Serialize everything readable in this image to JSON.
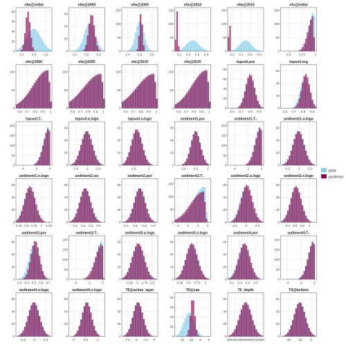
{
  "colors": {
    "prior": "#87ceeb",
    "posterior": "#8b0a50",
    "grid": "#e6e6e6",
    "frame": "#555555"
  },
  "legend": {
    "placement": "right",
    "entries": [
      "prior",
      "posterior"
    ]
  },
  "chart_data": {
    "type": "histogram-grid",
    "grid": true,
    "panels": [
      {
        "title": "nfw@initial",
        "ticks": [
          0.4,
          0.6,
          0.8
        ],
        "yticks": [
          0,
          20,
          40,
          60,
          80
        ],
        "ymax": 88,
        "xr": [
          0.3,
          0.9
        ],
        "prior": {
          "m": 0.6,
          "s": 0.12,
          "h": 45
        },
        "post": {
          "m": 0.5,
          "s": 0.04,
          "h": 80
        }
      },
      {
        "title": "nfw@2000",
        "ticks": [
          0.4,
          0.6,
          0.8
        ],
        "yticks": [
          0,
          20,
          40,
          60
        ],
        "ymax": 70,
        "xr": [
          0.3,
          0.9
        ],
        "prior": {
          "m": 0.65,
          "s": 0.09,
          "h": 45
        },
        "post": {
          "m": 0.68,
          "s": 0.05,
          "h": 60
        }
      },
      {
        "title": "nfw@2005",
        "ticks": [
          0.4,
          0.6,
          0.8
        ],
        "yticks": [
          0,
          50,
          100,
          150
        ],
        "ymax": 160,
        "xr": [
          0.3,
          0.9
        ],
        "prior": {
          "m": 0.6,
          "s": 0.07,
          "h": 110
        },
        "post": {
          "m": 0.62,
          "s": 0.025,
          "h": 140
        }
      },
      {
        "title": "nfw@2010",
        "ticks": [
          0.2,
          0.4,
          0.6,
          0.8
        ],
        "yticks": [
          0,
          50,
          100,
          150
        ],
        "ymax": 160,
        "xr": [
          0.1,
          0.9
        ],
        "prior": {
          "m": 0.5,
          "s": 0.14,
          "h": 40
        },
        "post": {
          "m": 0.15,
          "s": 0.02,
          "h": 150
        }
      },
      {
        "title": "nfw@2015",
        "ticks": [
          0.2,
          0.4,
          0.6,
          0.8
        ],
        "yticks": [
          0,
          50,
          100,
          150
        ],
        "ymax": 160,
        "xr": [
          0.1,
          0.9
        ],
        "prior": {
          "m": 0.5,
          "s": 0.13,
          "h": 40
        },
        "post": {
          "m": 0.14,
          "s": 0.015,
          "h": 150
        }
      },
      {
        "title": "nfs@initial",
        "ticks": [
          0.5,
          0.75,
          1.0
        ],
        "yticks": [
          0,
          50,
          100,
          150
        ],
        "ymax": 160,
        "xr": [
          0.35,
          1.02
        ],
        "prior": {
          "m": 0.97,
          "s": 0.025,
          "h": 150,
          "skew": -1
        },
        "post": {
          "m": 0.96,
          "s": 0.03,
          "h": 130,
          "skew": -1
        }
      },
      {
        "title": "nfs@2000",
        "ticks": [
          0.6,
          0.7,
          0.8,
          0.9,
          1.0
        ],
        "yticks": [
          0,
          50,
          100
        ],
        "ymax": 120,
        "xr": [
          0.55,
          1.02
        ],
        "prior": {
          "m": 0.97,
          "s": 0.06,
          "h": 100,
          "skew": -1
        },
        "post": {
          "m": 0.97,
          "s": 0.06,
          "h": 105,
          "skew": -1
        }
      },
      {
        "title": "nfs@2005",
        "ticks": [
          0.6,
          0.7,
          0.8,
          0.9,
          1.0
        ],
        "yticks": [
          0,
          50,
          100
        ],
        "ymax": 120,
        "xr": [
          0.55,
          1.02
        ],
        "prior": {
          "m": 0.97,
          "s": 0.07,
          "h": 90,
          "skew": -1
        },
        "post": {
          "m": 0.97,
          "s": 0.07,
          "h": 95,
          "skew": -1
        }
      },
      {
        "title": "nfs@2010",
        "ticks": [
          0.6,
          0.7,
          0.8,
          0.9,
          1.0
        ],
        "yticks": [
          0,
          50,
          100
        ],
        "ymax": 120,
        "xr": [
          0.55,
          1.02
        ],
        "prior": {
          "m": 0.97,
          "s": 0.07,
          "h": 90,
          "skew": -1
        },
        "post": {
          "m": 0.97,
          "s": 0.07,
          "h": 95,
          "skew": -1
        }
      },
      {
        "title": "nfs@2015",
        "ticks": [
          0.6,
          0.7,
          0.8,
          0.9,
          1.0
        ],
        "yticks": [
          0,
          50,
          100
        ],
        "ymax": 120,
        "xr": [
          0.55,
          1.02
        ],
        "prior": {
          "m": 0.97,
          "s": 0.06,
          "h": 100,
          "skew": -1
        },
        "post": {
          "m": 0.97,
          "s": 0.06,
          "h": 105,
          "skew": -1
        }
      },
      {
        "title": "topsoil.por",
        "ticks": [
          0.6,
          0.7,
          0.8,
          0.9
        ],
        "yticks": [
          0,
          20,
          40,
          60,
          80
        ],
        "ymax": 90,
        "xr": [
          0.55,
          0.95
        ],
        "prior": {
          "m": 0.8,
          "s": 0.05,
          "h": 65
        },
        "post": {
          "m": 0.8,
          "s": 0.05,
          "h": 70
        }
      },
      {
        "title": "topsoil.org",
        "ticks": [
          0.6,
          0.7,
          0.8,
          0.9
        ],
        "yticks": [
          0,
          20,
          40,
          60
        ],
        "ymax": 70,
        "xr": [
          0.55,
          0.95
        ],
        "prior": {
          "m": 0.82,
          "s": 0.05,
          "h": 50
        },
        "post": {
          "m": 0.83,
          "s": 0.045,
          "h": 55
        }
      },
      {
        "title": "topsoil.T₀",
        "ticks": [
          -4,
          -2,
          0
        ],
        "yticks": [
          0,
          50,
          100,
          150,
          200
        ],
        "ymax": 220,
        "xr": [
          -5,
          0.3
        ],
        "prior": {
          "m": -0.1,
          "s": 0.25,
          "h": 200,
          "skew": -1
        },
        "post": {
          "m": -0.1,
          "s": 0.25,
          "h": 190,
          "skew": -1
        }
      },
      {
        "title": "topsoil.α.logα",
        "ticks": [
          -3.5,
          -3.0,
          -2.5
        ],
        "yticks": [
          0,
          20,
          40,
          60
        ],
        "ymax": 70,
        "xr": [
          -3.8,
          -2.2
        ],
        "prior": {
          "m": -3.0,
          "s": 0.25,
          "h": 55
        },
        "post": {
          "m": -3.0,
          "s": 0.25,
          "h": 55
        }
      },
      {
        "title": "topsoil.n.logn",
        "ticks": [
          0.5,
          1.0
        ],
        "yticks": [
          0,
          20,
          40,
          60
        ],
        "ymax": 70,
        "xr": [
          0.1,
          1.3
        ],
        "prior": {
          "m": 0.6,
          "s": 0.18,
          "h": 55
        },
        "post": {
          "m": 0.6,
          "s": 0.18,
          "h": 58
        }
      },
      {
        "title": "sediment1.por",
        "ticks": [
          0.6,
          0.8,
          1.0
        ],
        "yticks": [
          0,
          20,
          40,
          60
        ],
        "ymax": 70,
        "xr": [
          0.45,
          1.05
        ],
        "prior": {
          "m": 0.8,
          "s": 0.08,
          "h": 55
        },
        "post": {
          "m": 0.8,
          "s": 0.08,
          "h": 55
        }
      },
      {
        "title": "sediment1.T₀",
        "ticks": [
          -4,
          -2,
          0
        ],
        "yticks": [
          0,
          50,
          100,
          150,
          200
        ],
        "ymax": 220,
        "xr": [
          -5,
          0.3
        ],
        "prior": {
          "m": -0.1,
          "s": 0.25,
          "h": 200,
          "skew": -1
        },
        "post": {
          "m": -0.1,
          "s": 0.25,
          "h": 195,
          "skew": -1
        }
      },
      {
        "title": "sediment1.α.logα",
        "ticks": [
          -3.5,
          -3.0,
          -2.5
        ],
        "yticks": [
          0,
          20,
          40,
          60
        ],
        "ymax": 70,
        "xr": [
          -3.8,
          -2.2
        ],
        "prior": {
          "m": -3.0,
          "s": 0.25,
          "h": 55
        },
        "post": {
          "m": -3.0,
          "s": 0.25,
          "h": 55
        }
      },
      {
        "title": "sediment1.n.logn",
        "ticks": [
          0.25,
          0.5,
          0.75,
          1.0,
          1.25
        ],
        "yticks": [
          0,
          20,
          40,
          60
        ],
        "ymax": 70,
        "xr": [
          0.15,
          1.35
        ],
        "prior": {
          "m": 0.6,
          "s": 0.18,
          "h": 55
        },
        "post": {
          "m": 0.62,
          "s": 0.18,
          "h": 58
        }
      },
      {
        "title": "sediment2.sic",
        "ticks": [
          0.2,
          0.3,
          0.4,
          0.5
        ],
        "yticks": [
          0,
          20,
          40,
          60
        ],
        "ymax": 70,
        "xr": [
          0.12,
          0.58
        ],
        "prior": {
          "m": 0.33,
          "s": 0.07,
          "h": 55
        },
        "post": {
          "m": 0.33,
          "s": 0.07,
          "h": 55
        }
      },
      {
        "title": "sediment2.por",
        "ticks": [
          0.4,
          0.5,
          0.6,
          0.7
        ],
        "yticks": [
          0,
          20,
          40,
          60
        ],
        "ymax": 70,
        "xr": [
          0.35,
          0.75
        ],
        "prior": {
          "m": 0.55,
          "s": 0.06,
          "h": 55
        },
        "post": {
          "m": 0.55,
          "s": 0.06,
          "h": 55
        }
      },
      {
        "title": "sediment2.T₀",
        "ticks": [
          -3,
          -2,
          -1,
          0
        ],
        "yticks": [
          0,
          50,
          100,
          150
        ],
        "ymax": 170,
        "xr": [
          -3.3,
          0.3
        ],
        "prior": {
          "m": -0.3,
          "s": 0.35,
          "h": 140,
          "skew": -1
        },
        "post": {
          "m": -0.4,
          "s": 0.4,
          "h": 120,
          "skew": -1
        }
      },
      {
        "title": "sediment2.α.logα",
        "ticks": [
          -3.5,
          -3.0,
          -2.5
        ],
        "yticks": [
          0,
          20,
          40,
          60
        ],
        "ymax": 70,
        "xr": [
          -3.8,
          -2.2
        ],
        "prior": {
          "m": -3.0,
          "s": 0.25,
          "h": 55
        },
        "post": {
          "m": -2.95,
          "s": 0.25,
          "h": 60
        }
      },
      {
        "title": "sediment2.n.logn",
        "ticks": [
          0.4,
          0.6,
          0.8,
          1.0
        ],
        "yticks": [
          0,
          20,
          40,
          60
        ],
        "ymax": 70,
        "xr": [
          0.2,
          1.2
        ],
        "prior": {
          "m": 0.62,
          "s": 0.15,
          "h": 55
        },
        "post": {
          "m": 0.63,
          "s": 0.15,
          "h": 58
        }
      },
      {
        "title": "sediment3.por",
        "ticks": [
          0.3,
          0.4,
          0.5,
          0.6,
          0.7
        ],
        "yticks": [
          0,
          20,
          40,
          60
        ],
        "ymax": 70,
        "xr": [
          0.25,
          0.75
        ],
        "prior": {
          "m": 0.5,
          "s": 0.07,
          "h": 55
        },
        "post": {
          "m": 0.52,
          "s": 0.06,
          "h": 62
        }
      },
      {
        "title": "sediment3.T₀",
        "ticks": [
          -4,
          -2,
          0
        ],
        "yticks": [
          0,
          50,
          100,
          150,
          200
        ],
        "ymax": 220,
        "xr": [
          -5,
          0.3
        ],
        "prior": {
          "m": -0.1,
          "s": 0.25,
          "h": 200,
          "skew": -1
        },
        "post": {
          "m": -0.1,
          "s": 0.3,
          "h": 180,
          "skew": -1
        }
      },
      {
        "title": "sediment3.α.logα",
        "ticks": [
          -3.25,
          -3.0,
          -2.75,
          -2.5
        ],
        "yticks": [
          0,
          20,
          40,
          60
        ],
        "ymax": 70,
        "xr": [
          -3.5,
          -2.3
        ],
        "prior": {
          "m": -2.95,
          "s": 0.2,
          "h": 55
        },
        "post": {
          "m": -2.95,
          "s": 0.2,
          "h": 58
        }
      },
      {
        "title": "sediment3.n.logn",
        "ticks": [
          0.25,
          0.5,
          0.75,
          1.0
        ],
        "yticks": [
          0,
          20,
          40,
          60
        ],
        "ymax": 70,
        "xr": [
          0.1,
          1.15
        ],
        "prior": {
          "m": 0.6,
          "s": 0.17,
          "h": 55
        },
        "post": {
          "m": 0.6,
          "s": 0.17,
          "h": 58
        }
      },
      {
        "title": "sediment4.por",
        "ticks": [
          0.2,
          0.3,
          0.4,
          0.5
        ],
        "yticks": [
          0,
          20,
          40,
          60
        ],
        "ymax": 70,
        "xr": [
          0.15,
          0.6
        ],
        "prior": {
          "m": 0.35,
          "s": 0.07,
          "h": 55
        },
        "post": {
          "m": 0.36,
          "s": 0.07,
          "h": 58
        }
      },
      {
        "title": "sediment4.T₀",
        "ticks": [
          -4,
          -2,
          0
        ],
        "yticks": [
          0,
          50,
          100,
          150,
          200
        ],
        "ymax": 220,
        "xr": [
          -5,
          0.3
        ],
        "prior": {
          "m": -0.1,
          "s": 0.25,
          "h": 200,
          "skew": -1
        },
        "post": {
          "m": -0.1,
          "s": 0.25,
          "h": 195,
          "skew": -1
        }
      },
      {
        "title": "sediment4.α.logα",
        "ticks": [
          -3.5,
          -3.0,
          -2.5
        ],
        "yticks": [
          0,
          20,
          40,
          60
        ],
        "ymax": 70,
        "xr": [
          -3.8,
          -2.2
        ],
        "prior": {
          "m": -3.0,
          "s": 0.25,
          "h": 55
        },
        "post": {
          "m": -3.0,
          "s": 0.25,
          "h": 55
        }
      },
      {
        "title": "sediment4.n.logn",
        "ticks": [
          0.0,
          0.5,
          1.0
        ],
        "yticks": [
          0,
          20,
          40,
          60
        ],
        "ymax": 70,
        "xr": [
          -0.2,
          1.3
        ],
        "prior": {
          "m": 0.55,
          "s": 0.2,
          "h": 55
        },
        "post": {
          "m": 0.55,
          "s": 0.2,
          "h": 55
        }
      },
      {
        "title": "T0@active_layer",
        "ticks": [
          -7.5,
          -5.0,
          -2.5,
          0.0
        ],
        "yticks": [
          0,
          20,
          40,
          60
        ],
        "ymax": 70,
        "xr": [
          -9,
          1
        ],
        "prior": {
          "m": -4.5,
          "s": 1.4,
          "h": 55
        },
        "post": {
          "m": -4.5,
          "s": 1.4,
          "h": 55
        }
      },
      {
        "title": "T0@zaa",
        "ticks": [
          -15,
          -10,
          -5,
          0
        ],
        "yticks": [
          0,
          20,
          40,
          60,
          80
        ],
        "ymax": 90,
        "xr": [
          -19,
          1
        ],
        "prior": {
          "m": -11,
          "s": 2.8,
          "h": 50
        },
        "post": {
          "m": -9,
          "s": 1.2,
          "h": 80
        }
      },
      {
        "title": "T0_depth",
        "ticks": [
          200,
          300,
          400,
          500,
          600,
          700,
          800
        ],
        "yticks": [
          0,
          20,
          40,
          60
        ],
        "ymax": 70,
        "xr": [
          170,
          830
        ],
        "prior": {
          "m": 500,
          "s": 110,
          "h": 52
        },
        "post": {
          "m": 500,
          "s": 110,
          "h": 55
        }
      },
      {
        "title": "T0@bottom",
        "ticks": [
          -20,
          -10,
          0
        ],
        "yticks": [
          0,
          20,
          40,
          60
        ],
        "ymax": 70,
        "xr": [
          -27,
          5
        ],
        "prior": {
          "m": -10,
          "s": 5,
          "h": 55
        },
        "post": {
          "m": -10,
          "s": 5,
          "h": 55
        }
      }
    ]
  }
}
